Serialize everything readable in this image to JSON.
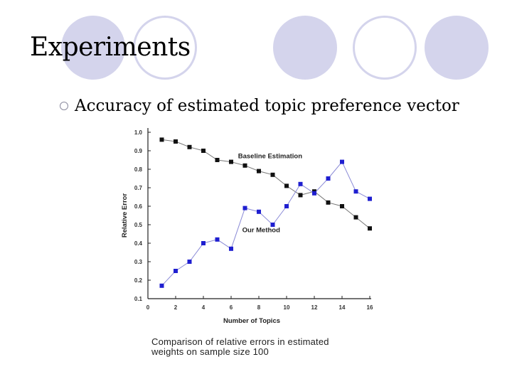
{
  "slide": {
    "title": "Experiments",
    "bullet": "Accuracy of estimated topic preference vector",
    "caption_line1": "Comparison of relative errors in estimated",
    "caption_line2": "weights on sample size 100",
    "decor_color": "#d4d4ec"
  },
  "chart_data": {
    "type": "line",
    "title": "",
    "xlabel": "Number of Topics",
    "ylabel": "Relative Error",
    "xlim": [
      0,
      16
    ],
    "ylim": [
      0.1,
      1.0
    ],
    "xticks": [
      0,
      2,
      4,
      6,
      8,
      10,
      12,
      14,
      16
    ],
    "yticks": [
      0.1,
      0.2,
      0.3,
      0.4,
      0.5,
      0.6,
      0.7,
      0.8,
      0.9,
      1.0
    ],
    "x": [
      1,
      2,
      3,
      4,
      5,
      6,
      7,
      8,
      9,
      10,
      11,
      12,
      13,
      14,
      15,
      16
    ],
    "series": [
      {
        "name": "Baseline Estimation",
        "color": "#111111",
        "values": [
          0.96,
          0.95,
          0.92,
          0.9,
          0.85,
          0.84,
          0.82,
          0.79,
          0.77,
          0.71,
          0.66,
          0.68,
          0.62,
          0.6,
          0.54,
          0.48
        ]
      },
      {
        "name": "Our Method",
        "color": "#1f1fd0",
        "values": [
          0.17,
          0.25,
          0.3,
          0.4,
          0.42,
          0.37,
          0.59,
          0.57,
          0.5,
          0.6,
          0.72,
          0.67,
          0.75,
          0.84,
          0.68,
          0.64
        ]
      }
    ],
    "annotations": [
      {
        "text": "Baseline Estimation",
        "series": 0
      },
      {
        "text": "Our Method",
        "series": 1
      }
    ]
  }
}
